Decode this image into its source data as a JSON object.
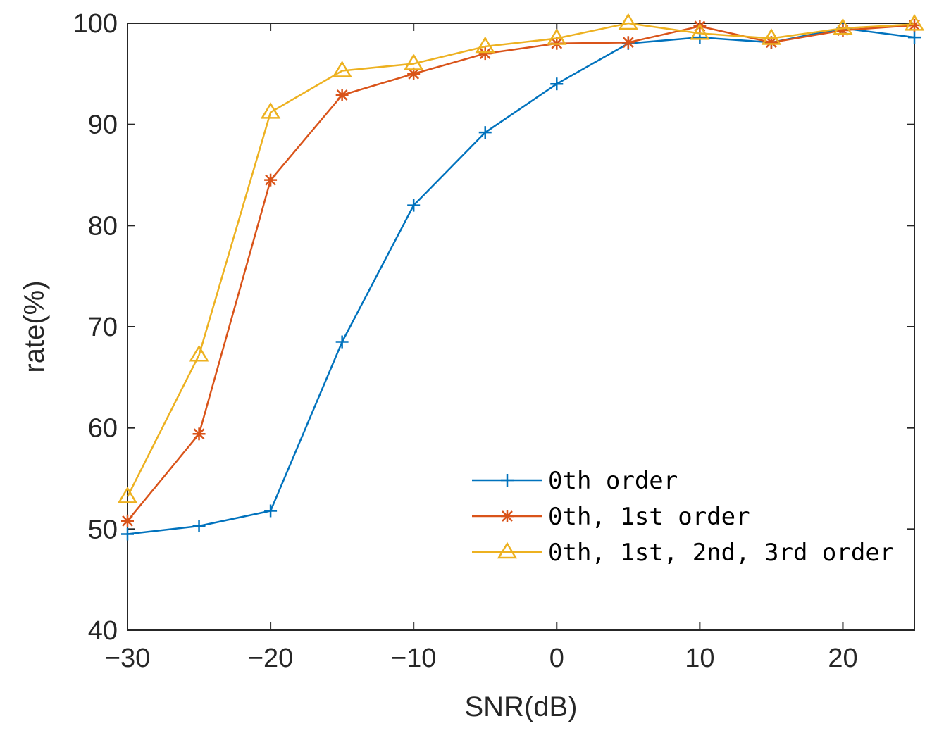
{
  "chart_data": {
    "type": "line",
    "title": "",
    "xlabel": "SNR(dB)",
    "ylabel": "rate(%)",
    "xlim": [
      -30,
      25
    ],
    "ylim": [
      40,
      100
    ],
    "xticks": [
      -30,
      -20,
      -10,
      0,
      10,
      20
    ],
    "xtick_labels": [
      "−30",
      "−20",
      "−10",
      "0",
      "10",
      "20"
    ],
    "yticks": [
      40,
      50,
      60,
      70,
      80,
      90,
      100
    ],
    "ytick_labels": [
      "40",
      "50",
      "60",
      "70",
      "80",
      "90",
      "100"
    ],
    "grid": false,
    "legend_position": "bottom-right",
    "x": [
      -30,
      -25,
      -20,
      -15,
      -10,
      -5,
      0,
      5,
      10,
      15,
      20,
      25
    ],
    "series": [
      {
        "name": "0th order",
        "color": "#0072BD",
        "marker": "plus",
        "values": [
          49.5,
          50.3,
          51.8,
          68.5,
          82.0,
          89.2,
          94.0,
          98.0,
          98.6,
          98.1,
          99.5,
          98.6
        ]
      },
      {
        "name": "0th, 1st order",
        "color": "#D95319",
        "marker": "asterisk",
        "values": [
          50.8,
          59.4,
          84.5,
          92.9,
          95.0,
          97.0,
          98.0,
          98.1,
          99.7,
          98.1,
          99.3,
          99.8
        ]
      },
      {
        "name": "0th, 1st, 2nd, 3rd order",
        "color": "#EDB120",
        "marker": "triangle",
        "values": [
          53.2,
          67.2,
          91.2,
          95.3,
          96.0,
          97.7,
          98.5,
          100.0,
          99.0,
          98.5,
          99.5,
          99.9
        ]
      }
    ]
  }
}
